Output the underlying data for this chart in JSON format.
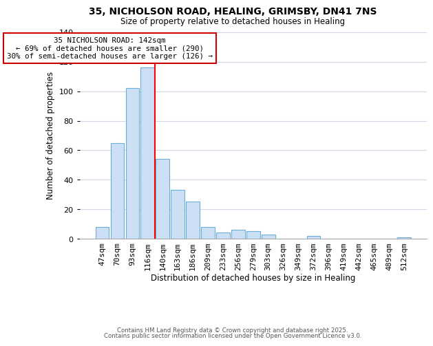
{
  "title1": "35, NICHOLSON ROAD, HEALING, GRIMSBY, DN41 7NS",
  "title2": "Size of property relative to detached houses in Healing",
  "xlabel": "Distribution of detached houses by size in Healing",
  "ylabel": "Number of detached properties",
  "bar_labels": [
    "47sqm",
    "70sqm",
    "93sqm",
    "116sqm",
    "140sqm",
    "163sqm",
    "186sqm",
    "209sqm",
    "233sqm",
    "256sqm",
    "279sqm",
    "303sqm",
    "326sqm",
    "349sqm",
    "372sqm",
    "396sqm",
    "419sqm",
    "442sqm",
    "465sqm",
    "489sqm",
    "512sqm"
  ],
  "bar_values": [
    8,
    65,
    102,
    116,
    54,
    33,
    25,
    8,
    4,
    6,
    5,
    3,
    0,
    0,
    2,
    0,
    0,
    0,
    0,
    0,
    1
  ],
  "bar_color": "#ccdff5",
  "bar_edge_color": "#6baed6",
  "vline_color": "red",
  "annotation_title": "35 NICHOLSON ROAD: 142sqm",
  "annotation_line1": "← 69% of detached houses are smaller (290)",
  "annotation_line2": "30% of semi-detached houses are larger (126) →",
  "annotation_box_color": "white",
  "annotation_box_edge": "#cc0000",
  "ylim": [
    0,
    140
  ],
  "yticks": [
    0,
    20,
    40,
    60,
    80,
    100,
    120,
    140
  ],
  "footer1": "Contains HM Land Registry data © Crown copyright and database right 2025.",
  "footer2": "Contains public sector information licensed under the Open Government Licence v3.0.",
  "background_color": "#ffffff",
  "grid_color": "#d0d8e8"
}
